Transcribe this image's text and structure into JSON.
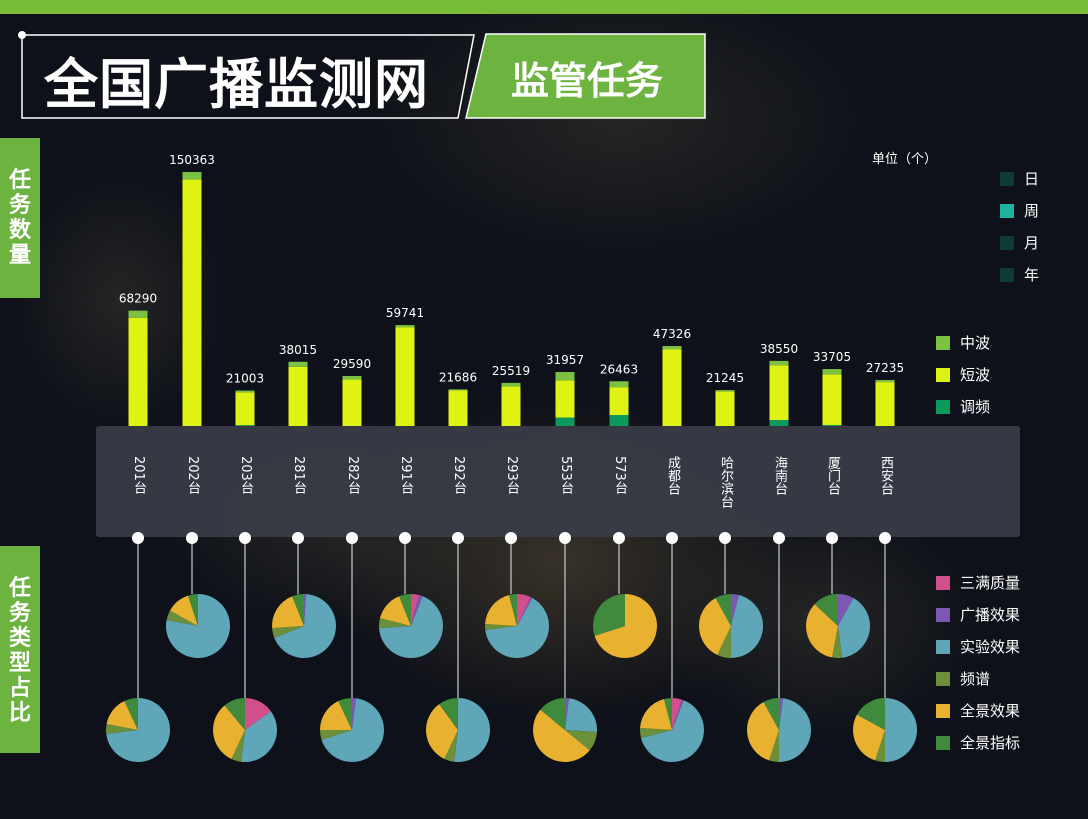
{
  "header": {
    "title": "全国广播监测网",
    "subtitle": "监管任务"
  },
  "sections": {
    "task_count": "任务数量",
    "task_type_ratio": "任务类型占比"
  },
  "unit_label": "单位（个）",
  "period_legend": [
    {
      "label": "日",
      "color": "#0f3b36"
    },
    {
      "label": "周",
      "color": "#1fb4a0"
    },
    {
      "label": "月",
      "color": "#0f3b36"
    },
    {
      "label": "年",
      "color": "#0f3b36"
    }
  ],
  "band_legend": [
    {
      "label": "中波",
      "color": "#7cc242"
    },
    {
      "label": "短波",
      "color": "#def213"
    },
    {
      "label": "调频",
      "color": "#0c9a5c"
    }
  ],
  "type_legend": [
    {
      "label": "三满质量",
      "color": "#d24f8e"
    },
    {
      "label": "广播效果",
      "color": "#7c57b3"
    },
    {
      "label": "实验效果",
      "color": "#5fa6b8"
    },
    {
      "label": "频谱",
      "color": "#6b8f3a"
    },
    {
      "label": "全景效果",
      "color": "#e9b130"
    },
    {
      "label": "全景指标",
      "color": "#3f8a3d"
    }
  ],
  "chart_data": [
    {
      "type": "bar",
      "stacked": true,
      "categories": [
        "201台",
        "202台",
        "203台",
        "281台",
        "282台",
        "291台",
        "292台",
        "293台",
        "553台",
        "573台",
        "成都台",
        "哈尔滨台",
        "海南台",
        "厦门台",
        "西安台"
      ],
      "totals": [
        68290,
        150363,
        21003,
        38015,
        29590,
        59741,
        21686,
        25519,
        31957,
        26463,
        47326,
        21245,
        38550,
        33705,
        27235
      ],
      "series": [
        {
          "name": "调频",
          "values": [
            0,
            0,
            500,
            0,
            0,
            0,
            0,
            0,
            5000,
            6500,
            0,
            0,
            3500,
            600,
            0
          ]
        },
        {
          "name": "短波",
          "values": [
            64000,
            146000,
            19500,
            35000,
            27500,
            58500,
            21000,
            23500,
            22000,
            16500,
            45500,
            20500,
            32500,
            30000,
            26000
          ]
        },
        {
          "name": "中波",
          "values": [
            4290,
            4363,
            1003,
            3015,
            2090,
            1241,
            686,
            2019,
            4957,
            3463,
            1826,
            745,
            2550,
            3105,
            1235
          ]
        }
      ]
    },
    {
      "type": "pie",
      "slice_order": [
        "三满质量",
        "广播效果",
        "实验效果",
        "频谱",
        "全景效果",
        "全景指标"
      ],
      "pies": [
        {
          "category": "201台",
          "values": [
            0,
            0,
            73,
            5,
            15,
            7
          ]
        },
        {
          "category": "202台",
          "values": [
            0,
            0,
            78,
            5,
            12,
            5
          ]
        },
        {
          "category": "203台",
          "values": [
            15,
            0,
            37,
            5,
            32,
            11
          ]
        },
        {
          "category": "281台",
          "values": [
            0,
            1,
            68,
            5,
            20,
            6
          ]
        },
        {
          "category": "282台",
          "values": [
            0,
            2,
            68,
            5,
            18,
            7
          ]
        },
        {
          "category": "291台",
          "values": [
            4,
            2,
            68,
            5,
            15,
            6
          ]
        },
        {
          "category": "292台",
          "values": [
            0,
            0,
            52,
            5,
            33,
            10
          ]
        },
        {
          "category": "293台",
          "values": [
            7,
            1,
            65,
            3,
            20,
            4
          ]
        },
        {
          "category": "553台",
          "values": [
            0,
            2,
            24,
            10,
            50,
            14
          ]
        },
        {
          "category": "573台",
          "values": [
            0,
            0,
            0,
            0,
            70,
            30
          ]
        },
        {
          "category": "成都台",
          "values": [
            5,
            1,
            65,
            5,
            20,
            4
          ]
        },
        {
          "category": "哈尔滨台",
          "values": [
            0,
            4,
            46,
            7,
            35,
            8
          ]
        },
        {
          "category": "海南台",
          "values": [
            0,
            2,
            48,
            5,
            37,
            8
          ]
        },
        {
          "category": "厦门台",
          "values": [
            0,
            8,
            40,
            5,
            34,
            13
          ]
        },
        {
          "category": "西安台",
          "values": [
            0,
            0,
            50,
            5,
            28,
            17
          ]
        }
      ]
    }
  ]
}
